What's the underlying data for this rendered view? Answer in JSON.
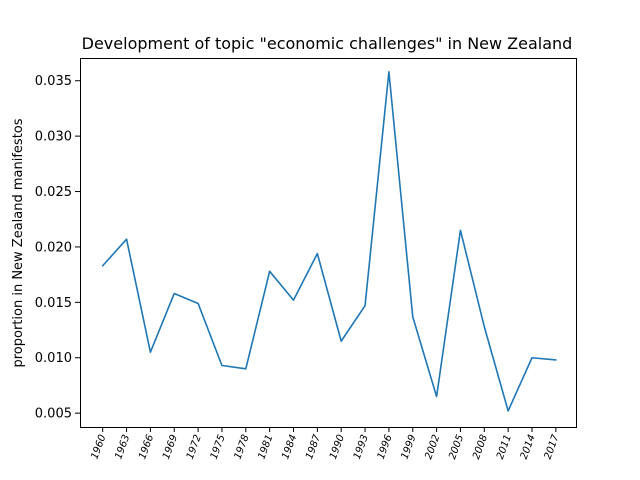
{
  "chart_data": {
    "type": "line",
    "title": "Development of topic \"economic challenges\" in New Zealand",
    "xlabel": "",
    "ylabel": "proportion in New Zealand manifestos",
    "categories": [
      "1960",
      "1963",
      "1966",
      "1969",
      "1972",
      "1975",
      "1978",
      "1981",
      "1984",
      "1987",
      "1990",
      "1993",
      "1996",
      "1999",
      "2002",
      "2005",
      "2008",
      "2011",
      "2014",
      "2017"
    ],
    "series": [
      {
        "values": [
          0.0183,
          0.0207,
          0.0105,
          0.0158,
          0.0149,
          0.0093,
          0.009,
          0.0178,
          0.0152,
          0.0194,
          0.0115,
          0.0147,
          0.0358,
          0.0137,
          0.0065,
          0.0215,
          0.0128,
          0.0052,
          0.01,
          0.0098
        ],
        "color": "#1f77b4"
      }
    ],
    "yticks": [
      "0.005",
      "0.010",
      "0.015",
      "0.020",
      "0.025",
      "0.030",
      "0.035"
    ],
    "ylim": [
      0.00375,
      0.03705
    ],
    "grid": false,
    "legend": "none"
  }
}
